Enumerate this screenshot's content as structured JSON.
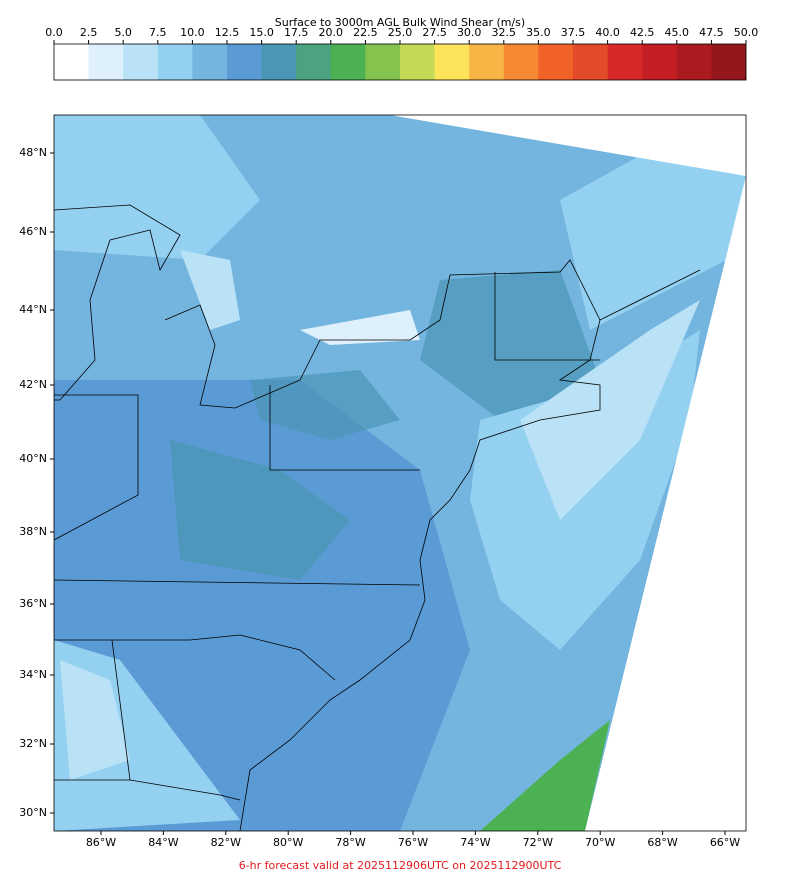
{
  "colorbar": {
    "title": "Surface to 3000m AGL Bulk Wind Shear (m/s)",
    "ticks": [
      "0.0",
      "2.5",
      "5.0",
      "7.5",
      "10.0",
      "12.5",
      "15.0",
      "17.5",
      "20.0",
      "22.5",
      "25.0",
      "27.5",
      "30.0",
      "32.5",
      "35.0",
      "37.5",
      "40.0",
      "42.5",
      "45.0",
      "47.5",
      "50.0"
    ],
    "colors": [
      "#ffffff",
      "#ddf0fb",
      "#b9e2f6",
      "#94d0f0",
      "#74b5df",
      "#5b9bd5",
      "#4a96b5",
      "#4ba47f",
      "#4bb153",
      "#84c44e",
      "#c6d957",
      "#fde35a",
      "#f9b446",
      "#f68a34",
      "#f06228",
      "#e24a28",
      "#d8282a",
      "#c31e24",
      "#aa1a1f",
      "#93171b"
    ]
  },
  "map": {
    "lat_labels": [
      "48°N",
      "46°N",
      "44°N",
      "42°N",
      "40°N",
      "38°N",
      "36°N",
      "34°N",
      "32°N",
      "30°N"
    ],
    "lon_labels": [
      "86°W",
      "84°W",
      "82°W",
      "80°W",
      "78°W",
      "76°W",
      "74°W",
      "72°W",
      "70°W",
      "68°W",
      "66°W"
    ]
  },
  "footer": "6-hr forecast valid at 2025112906UTC on 2025112900UTC"
}
